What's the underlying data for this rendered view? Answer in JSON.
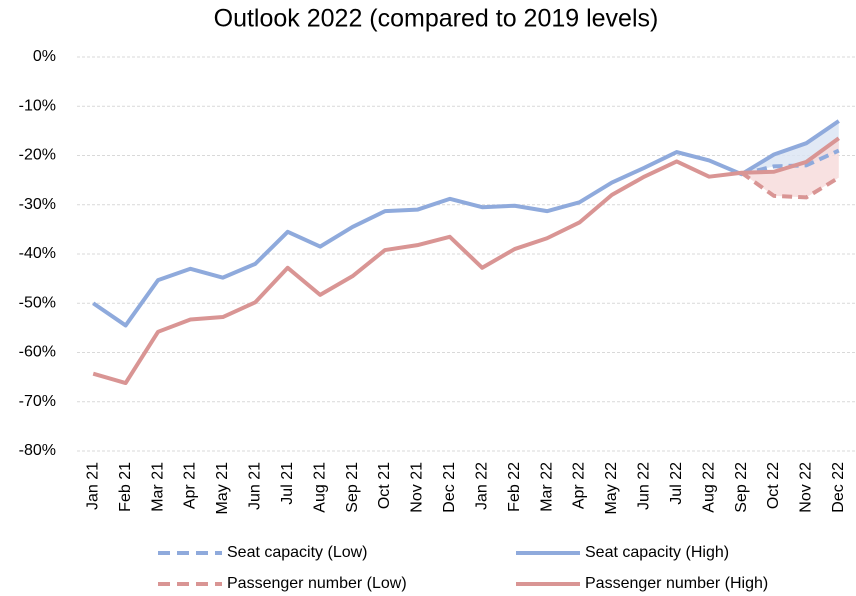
{
  "chart_data": {
    "type": "line",
    "title": "Outlook 2022 (compared to 2019 levels)",
    "categories": [
      "Jan 21",
      "Feb 21",
      "Mar 21",
      "Apr 21",
      "May 21",
      "Jun 21",
      "Jul 21",
      "Aug 21",
      "Sep 21",
      "Oct 21",
      "Nov 21",
      "Dec 21",
      "Jan 22",
      "Feb 22",
      "Mar 22",
      "Apr 22",
      "May 22",
      "Jun 22",
      "Jul 22",
      "Aug 22",
      "Sep 22",
      "Oct 22",
      "Nov 22",
      "Dec 22"
    ],
    "series": [
      {
        "name": "Seat capacity (Low)",
        "color": "#8faadc",
        "style": "dashed",
        "values": [
          null,
          null,
          null,
          null,
          null,
          null,
          null,
          null,
          null,
          null,
          null,
          null,
          null,
          null,
          null,
          null,
          null,
          null,
          null,
          null,
          -23.8,
          -22.2,
          -22,
          -19
        ]
      },
      {
        "name": "Seat capacity (High)",
        "color": "#8faadc",
        "style": "solid",
        "band_color": "#dae3f3",
        "values": [
          -50,
          -54.5,
          -45.3,
          -43,
          -44.8,
          -42,
          -35.5,
          -38.5,
          -34.5,
          -31.3,
          -31,
          -28.8,
          -30.5,
          -30.2,
          -31.3,
          -29.5,
          -25.5,
          -22.5,
          -19.3,
          -21,
          -23.8,
          -19.8,
          -17.5,
          -13
        ]
      },
      {
        "name": "Passenger number (Low)",
        "color": "#d99594",
        "style": "dashed",
        "values": [
          null,
          null,
          null,
          null,
          null,
          null,
          null,
          null,
          null,
          null,
          null,
          null,
          null,
          null,
          null,
          null,
          null,
          null,
          null,
          null,
          -23.5,
          -28.2,
          -28.5,
          -24.5
        ]
      },
      {
        "name": "Passenger number (High)",
        "color": "#d99594",
        "style": "solid",
        "band_color": "#f6d9d9",
        "values": [
          -64.3,
          -66.2,
          -55.8,
          -53.3,
          -52.8,
          -49.8,
          -42.8,
          -48.3,
          -44.5,
          -39.2,
          -38.2,
          -36.5,
          -42.8,
          -39,
          -36.8,
          -33.6,
          -28,
          -24.3,
          -21.2,
          -24.3,
          -23.5,
          -23.3,
          -21.3,
          -16.5
        ]
      }
    ],
    "ylim": [
      -80,
      0
    ],
    "yticks": [
      {
        "value": 0,
        "label": "0%"
      },
      {
        "value": -10,
        "label": "-10%"
      },
      {
        "value": -20,
        "label": "-20%"
      },
      {
        "value": -30,
        "label": "-30%"
      },
      {
        "value": -40,
        "label": "-40%"
      },
      {
        "value": -50,
        "label": "-50%"
      },
      {
        "value": -60,
        "label": "-60%"
      },
      {
        "value": -70,
        "label": "-70%"
      },
      {
        "value": -80,
        "label": "-80%"
      }
    ],
    "grid": true,
    "legend": "bottom"
  }
}
